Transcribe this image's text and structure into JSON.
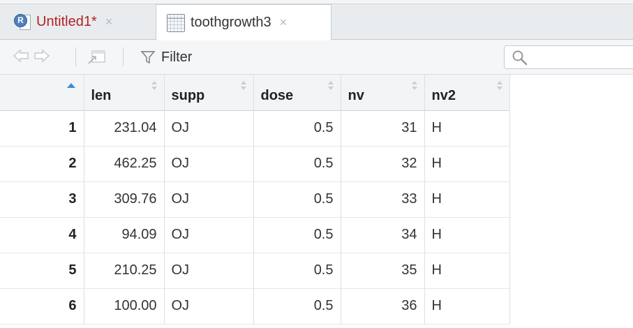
{
  "tabs": [
    {
      "label": "Untitled1*",
      "icon": "r-script-icon",
      "close": "×"
    },
    {
      "label": "toothgrowth3",
      "icon": "data-grid-icon",
      "close": "×"
    }
  ],
  "toolbar": {
    "filter_label": "Filter",
    "search_value": ""
  },
  "table": {
    "columns": [
      "len",
      "supp",
      "dose",
      "nv",
      "nv2"
    ],
    "rows": [
      {
        "row": "1",
        "len": "231.04",
        "supp": "OJ",
        "dose": "0.5",
        "nv": "31",
        "nv2": "H"
      },
      {
        "row": "2",
        "len": "462.25",
        "supp": "OJ",
        "dose": "0.5",
        "nv": "32",
        "nv2": "H"
      },
      {
        "row": "3",
        "len": "309.76",
        "supp": "OJ",
        "dose": "0.5",
        "nv": "33",
        "nv2": "H"
      },
      {
        "row": "4",
        "len": "94.09",
        "supp": "OJ",
        "dose": "0.5",
        "nv": "34",
        "nv2": "H"
      },
      {
        "row": "5",
        "len": "210.25",
        "supp": "OJ",
        "dose": "0.5",
        "nv": "35",
        "nv2": "H"
      },
      {
        "row": "6",
        "len": "100.00",
        "supp": "OJ",
        "dose": "0.5",
        "nv": "36",
        "nv2": "H"
      }
    ]
  },
  "colors": {
    "sort_active": "#3c8dde",
    "dirty_tab": "#b22222"
  }
}
